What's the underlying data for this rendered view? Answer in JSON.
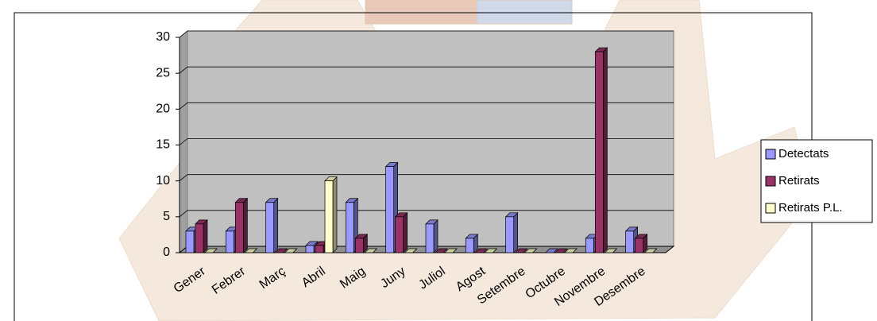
{
  "chart_data": {
    "type": "bar",
    "categories": [
      "Gener",
      "Febrer",
      "Març",
      "Abril",
      "Maig",
      "Juny",
      "Juliol",
      "Agost",
      "Setembre",
      "Octubre",
      "Novembre",
      "Desembre"
    ],
    "series": [
      {
        "name": "Detectats",
        "color": "#9999ff",
        "values": [
          3,
          3,
          7,
          1,
          7,
          12,
          4,
          2,
          5,
          0,
          2,
          3
        ]
      },
      {
        "name": "Retirats",
        "color": "#993366",
        "values": [
          4,
          7,
          0,
          1,
          2,
          5,
          0,
          0,
          0,
          0,
          28,
          2
        ]
      },
      {
        "name": "Retirats P.L.",
        "color": "#ffffcc",
        "values": [
          0,
          0,
          0,
          10,
          0,
          0,
          0,
          0,
          0,
          0,
          0,
          0
        ]
      }
    ],
    "ylim": [
      0,
      30
    ],
    "yticks": [
      0,
      5,
      10,
      15,
      20,
      25,
      30
    ],
    "grid": true,
    "legend": "right"
  }
}
